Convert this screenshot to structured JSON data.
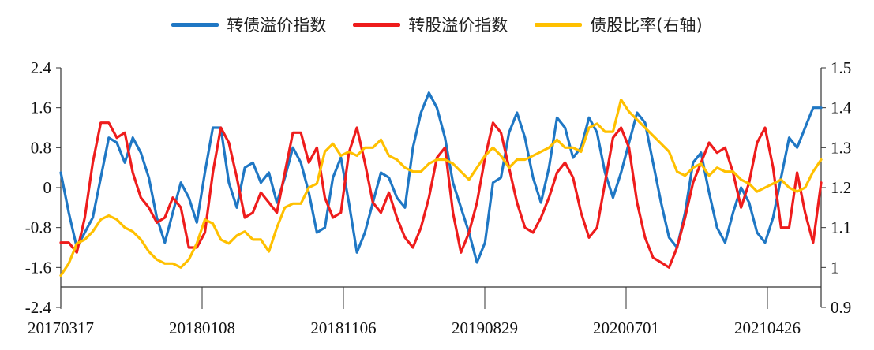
{
  "legend": [
    {
      "label": "转债溢价指数",
      "color": "#1f77c4"
    },
    {
      "label": "转股溢价指数",
      "color": "#ee1c1c"
    },
    {
      "label": "债股比率(右轴)",
      "color": "#ffc000"
    }
  ],
  "chart_data": {
    "type": "line",
    "x_ticks": [
      "20170317",
      "20180108",
      "20181106",
      "20190829",
      "20200701",
      "20210426"
    ],
    "left_ticks": [
      "2.4",
      "1.6",
      "0.8",
      "0",
      "-0.8",
      "-1.6",
      "-2.4"
    ],
    "right_ticks": [
      "1.5",
      "1.4",
      "1.3",
      "1.2",
      "1.1",
      "1",
      "0.9"
    ],
    "left_ylim": [
      -2.4,
      2.4
    ],
    "right_ylim": [
      0.9,
      1.5
    ],
    "series": [
      {
        "name": "转债溢价指数",
        "axis": "left",
        "color": "#1f77c4",
        "values": [
          0.3,
          -0.5,
          -1.2,
          -0.9,
          -0.6,
          0.2,
          1.0,
          0.9,
          0.5,
          1.0,
          0.7,
          0.2,
          -0.6,
          -1.1,
          -0.5,
          0.1,
          -0.2,
          -0.7,
          0.3,
          1.2,
          1.2,
          0.1,
          -0.4,
          0.4,
          0.5,
          0.1,
          0.3,
          -0.3,
          0.2,
          0.8,
          0.5,
          -0.1,
          -0.9,
          -0.8,
          0.2,
          0.6,
          -0.3,
          -1.3,
          -0.9,
          -0.3,
          0.3,
          0.2,
          -0.2,
          -0.4,
          0.8,
          1.5,
          1.9,
          1.6,
          1.0,
          0.1,
          -0.4,
          -0.9,
          -1.5,
          -1.1,
          0.1,
          0.2,
          1.1,
          1.5,
          1.0,
          0.2,
          -0.3,
          0.4,
          1.4,
          1.2,
          0.6,
          0.8,
          1.4,
          1.1,
          0.3,
          -0.2,
          0.3,
          0.9,
          1.5,
          1.3,
          0.5,
          -0.3,
          -1.0,
          -1.2,
          -0.5,
          0.5,
          0.7,
          -0.1,
          -0.8,
          -1.1,
          -0.5,
          0.0,
          -0.3,
          -0.9,
          -1.1,
          -0.6,
          0.2,
          1.0,
          0.8,
          1.2,
          1.6,
          1.6
        ]
      },
      {
        "name": "转股溢价指数",
        "axis": "left",
        "color": "#ee1c1c",
        "values": [
          -1.1,
          -1.1,
          -1.3,
          -0.6,
          0.5,
          1.3,
          1.3,
          1.0,
          1.1,
          0.3,
          -0.2,
          -0.4,
          -0.7,
          -0.6,
          -0.2,
          -0.4,
          -1.2,
          -1.2,
          -0.9,
          0.3,
          1.2,
          0.9,
          0.2,
          -0.6,
          -0.5,
          -0.1,
          -0.3,
          -0.5,
          0.3,
          1.1,
          1.1,
          0.5,
          0.8,
          -0.2,
          -0.6,
          -0.5,
          0.7,
          1.2,
          0.5,
          -0.3,
          -0.5,
          -0.1,
          -0.6,
          -1.0,
          -1.2,
          -0.8,
          -0.2,
          0.6,
          0.8,
          -0.5,
          -1.3,
          -0.9,
          -0.3,
          0.6,
          1.3,
          1.1,
          0.4,
          -0.3,
          -0.8,
          -0.9,
          -0.6,
          -0.2,
          0.3,
          0.5,
          0.2,
          -0.5,
          -1.0,
          -0.8,
          0.1,
          1.0,
          1.2,
          0.8,
          -0.3,
          -1.0,
          -1.4,
          -1.5,
          -1.6,
          -1.2,
          -0.6,
          0.1,
          0.5,
          0.9,
          0.7,
          0.8,
          0.3,
          -0.4,
          0.1,
          0.9,
          1.2,
          0.4,
          -0.8,
          -0.8,
          0.3,
          -0.5,
          -1.1,
          0.1
        ]
      },
      {
        "name": "债股比率(右轴)",
        "axis": "right",
        "color": "#ffc000",
        "values": [
          0.98,
          1.01,
          1.06,
          1.07,
          1.09,
          1.12,
          1.13,
          1.12,
          1.1,
          1.09,
          1.07,
          1.04,
          1.02,
          1.01,
          1.01,
          1.0,
          1.02,
          1.06,
          1.12,
          1.11,
          1.07,
          1.06,
          1.08,
          1.09,
          1.07,
          1.07,
          1.04,
          1.1,
          1.15,
          1.16,
          1.16,
          1.2,
          1.21,
          1.29,
          1.31,
          1.28,
          1.29,
          1.28,
          1.3,
          1.3,
          1.32,
          1.28,
          1.27,
          1.25,
          1.24,
          1.24,
          1.26,
          1.27,
          1.27,
          1.26,
          1.24,
          1.22,
          1.25,
          1.28,
          1.3,
          1.28,
          1.25,
          1.27,
          1.27,
          1.28,
          1.29,
          1.3,
          1.32,
          1.3,
          1.3,
          1.29,
          1.35,
          1.36,
          1.34,
          1.34,
          1.42,
          1.39,
          1.37,
          1.35,
          1.33,
          1.31,
          1.29,
          1.24,
          1.23,
          1.25,
          1.26,
          1.23,
          1.25,
          1.24,
          1.24,
          1.22,
          1.21,
          1.19,
          1.2,
          1.21,
          1.22,
          1.2,
          1.19,
          1.2,
          1.24,
          1.27
        ]
      }
    ]
  }
}
